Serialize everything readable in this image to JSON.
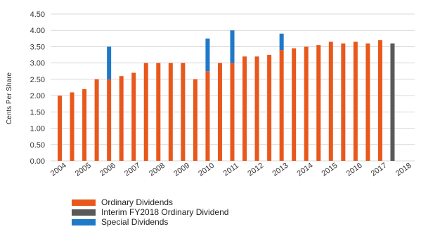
{
  "chart_data": {
    "type": "bar",
    "stacked": true,
    "ylabel": "Cents Per Share",
    "ylim": [
      0,
      4.5
    ],
    "yticks": [
      "0.00",
      "0.50",
      "1.00",
      "1.50",
      "2.00",
      "2.50",
      "3.00",
      "3.50",
      "4.00",
      "4.50"
    ],
    "grid": true,
    "legend_position": "bottom-left",
    "categories": [
      "2004",
      "2005",
      "2006",
      "2007",
      "2008",
      "2009",
      "2010",
      "2011",
      "2012",
      "2013",
      "2014",
      "2015",
      "2016",
      "2017",
      "2018"
    ],
    "bars": [
      {
        "x": 2004.0,
        "ordinary": 2.0
      },
      {
        "x": 2004.5,
        "ordinary": 2.1
      },
      {
        "x": 2005.0,
        "ordinary": 2.2
      },
      {
        "x": 2005.5,
        "ordinary": 2.5
      },
      {
        "x": 2006.0,
        "ordinary": 2.5,
        "special": 1.0
      },
      {
        "x": 2006.5,
        "ordinary": 2.6
      },
      {
        "x": 2007.0,
        "ordinary": 2.7
      },
      {
        "x": 2007.5,
        "ordinary": 3.0
      },
      {
        "x": 2008.0,
        "ordinary": 3.0
      },
      {
        "x": 2008.5,
        "ordinary": 3.0
      },
      {
        "x": 2009.0,
        "ordinary": 3.0
      },
      {
        "x": 2009.5,
        "ordinary": 2.5
      },
      {
        "x": 2010.0,
        "ordinary": 2.75,
        "special": 1.0
      },
      {
        "x": 2010.5,
        "ordinary": 3.0
      },
      {
        "x": 2011.0,
        "ordinary": 3.0,
        "special": 1.0
      },
      {
        "x": 2011.5,
        "ordinary": 3.2
      },
      {
        "x": 2012.0,
        "ordinary": 3.2
      },
      {
        "x": 2012.5,
        "ordinary": 3.25
      },
      {
        "x": 2013.0,
        "ordinary": 3.4,
        "special": 0.5
      },
      {
        "x": 2013.5,
        "ordinary": 3.45
      },
      {
        "x": 2014.0,
        "ordinary": 3.5
      },
      {
        "x": 2014.5,
        "ordinary": 3.55
      },
      {
        "x": 2015.0,
        "ordinary": 3.65
      },
      {
        "x": 2015.5,
        "ordinary": 3.6
      },
      {
        "x": 2016.0,
        "ordinary": 3.65
      },
      {
        "x": 2016.5,
        "ordinary": 3.6
      },
      {
        "x": 2017.0,
        "ordinary": 3.7
      },
      {
        "x": 2017.5,
        "interim": 3.6
      }
    ],
    "series": [
      {
        "name": "Ordinary Dividends",
        "key": "ordinary",
        "color": "#e8581c"
      },
      {
        "name": "Interim FY2018 Ordinary Dividend",
        "key": "interim",
        "color": "#595959"
      },
      {
        "name": "Special Dividends",
        "key": "special",
        "color": "#1f78c8"
      }
    ]
  }
}
